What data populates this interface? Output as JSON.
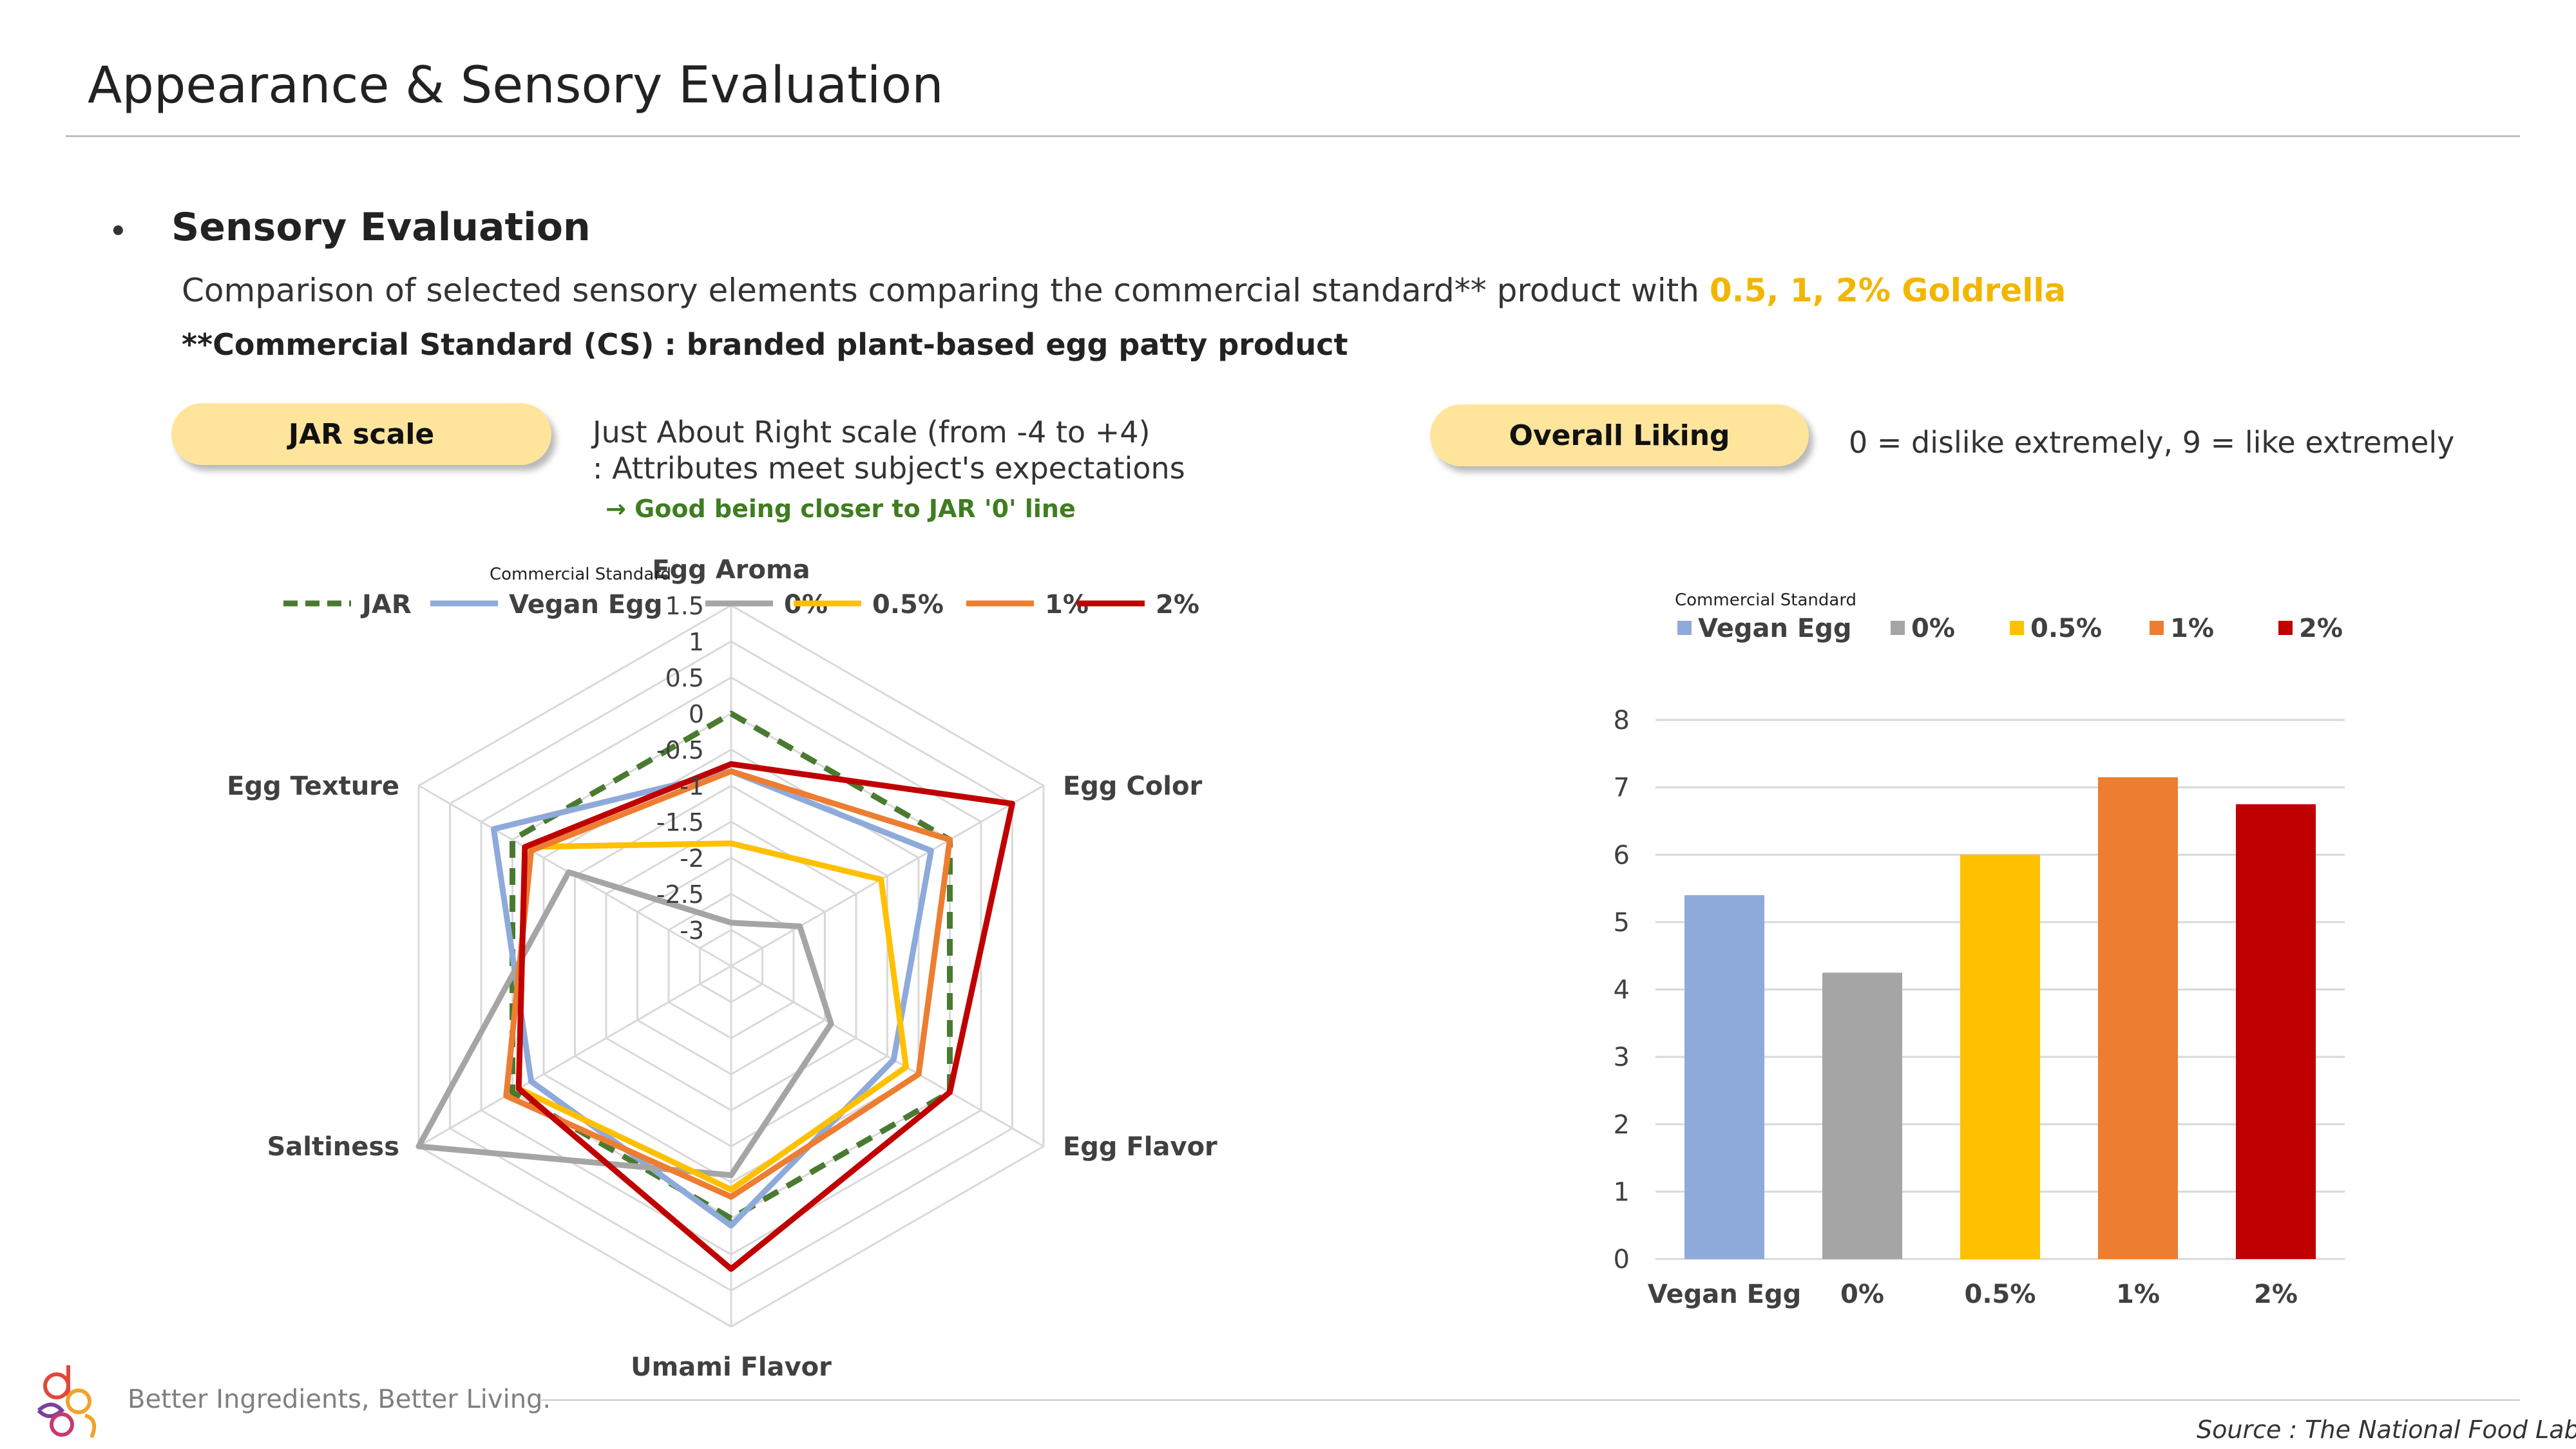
{
  "page": {
    "title": "Appearance & Sensory Evaluation",
    "bullet": "•",
    "section_heading": "Sensory Evaluation",
    "intro_text": "Comparison of selected sensory elements comparing the commercial standard** product with ",
    "intro_highlight": "0.5, 1, 2% Goldrella",
    "cs_note": "**Commercial Standard (CS) : branded plant-based egg patty product",
    "jar_pill": "JAR scale",
    "jar_desc_line1": "Just About Right scale (from -4 to +4)",
    "jar_desc_line2": ": Attributes meet subject's expectations",
    "jar_desc_line3": "→ Good being closer to JAR '0' line",
    "liking_pill": "Overall Liking",
    "liking_desc": "0 = dislike extremely, 9 = like extremely",
    "tagline": "Better Ingredients, Better Living.",
    "source": "Source : The National Food Lab",
    "logo_icon": "desang-logo-icon"
  },
  "colors": {
    "jar": "#4a7a30",
    "vegan_egg": "#8eaadb",
    "zero": "#a5a5a5",
    "half": "#ffc000",
    "one": "#ed7d31",
    "two": "#c00000",
    "pill": "#ffe59c",
    "highlight": "#f2b600"
  },
  "chart_data": [
    {
      "type": "radar",
      "legend_caption": "Commercial Standard",
      "legend_position": "top",
      "axes": [
        "Egg Aroma",
        "Egg Color",
        "Egg Flavor",
        "Umami Flavor",
        "Saltiness",
        "Egg Texture"
      ],
      "ticks": [
        "1.5",
        "1",
        "0.5",
        "0",
        "-0.5",
        "-1",
        "-1.5",
        "-2",
        "-2.5",
        "-3"
      ],
      "range": [
        -3.5,
        1.5
      ],
      "grid": true,
      "series": [
        {
          "name": "JAR",
          "color": "#4a7a30",
          "dashed": true,
          "values": [
            0,
            0,
            0,
            0,
            0,
            0
          ]
        },
        {
          "name": "Vegan Egg",
          "color": "#8eaadb",
          "values": [
            -0.8,
            -0.3,
            -0.9,
            0.1,
            -0.3,
            0.3
          ]
        },
        {
          "name": "0%",
          "color": "#a5a5a5",
          "values": [
            -2.9,
            -2.4,
            -1.9,
            -0.6,
            1.5,
            -0.9
          ]
        },
        {
          "name": "0.5%",
          "color": "#ffc000",
          "values": [
            -1.8,
            -1.1,
            -0.7,
            -0.4,
            -0.1,
            -0.2
          ]
        },
        {
          "name": "1%",
          "color": "#ed7d31",
          "values": [
            -0.8,
            0,
            -0.5,
            -0.3,
            0.1,
            -0.3
          ]
        },
        {
          "name": "2%",
          "color": "#c00000",
          "values": [
            -0.7,
            1.0,
            0,
            0.7,
            -0.1,
            -0.2
          ]
        }
      ]
    },
    {
      "type": "bar",
      "legend_caption": "Commercial Standard",
      "legend_position": "top",
      "categories": [
        "Vegan Egg",
        "0%",
        "0.5%",
        "1%",
        "2%"
      ],
      "values": [
        5.4,
        4.25,
        6.0,
        7.15,
        6.75
      ],
      "colors": [
        "#8eaadb",
        "#a5a5a5",
        "#ffc000",
        "#ed7d31",
        "#c00000"
      ],
      "yticks": [
        "0",
        "1",
        "2",
        "3",
        "4",
        "5",
        "6",
        "7",
        "8"
      ],
      "ylim": [
        0,
        8
      ],
      "grid": true
    }
  ]
}
